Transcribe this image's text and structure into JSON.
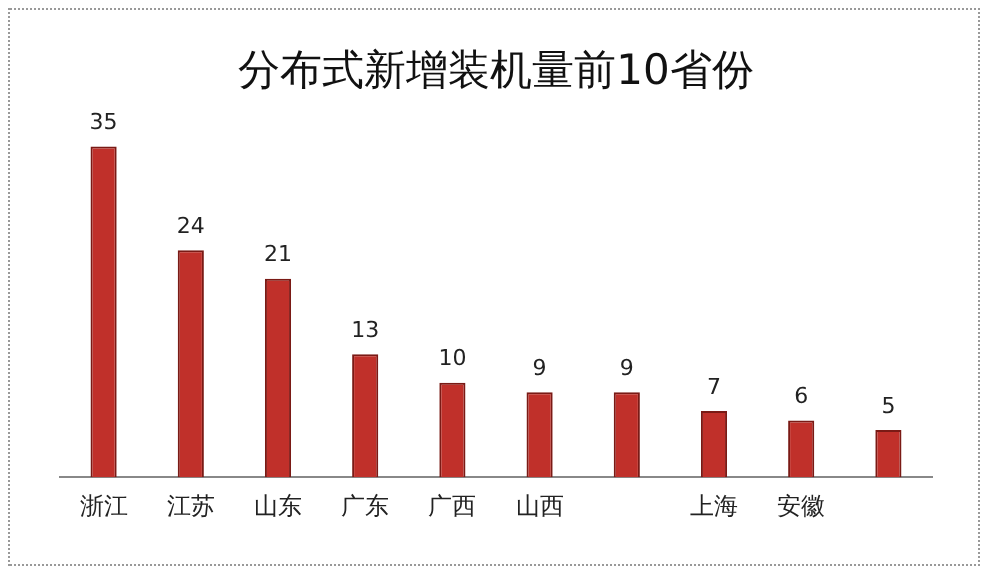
{
  "chart_data": {
    "type": "bar",
    "title": "分布式新增装机量前10省份",
    "categories": [
      "浙江",
      "江苏",
      "山东",
      "广东",
      "广西",
      "山西",
      null,
      "上海",
      "安徽",
      null
    ],
    "values": [
      35,
      24,
      21,
      13,
      10,
      9,
      9,
      7,
      6,
      5
    ],
    "color": "#c0302a",
    "data_labels": true,
    "grid": false,
    "legend": false
  }
}
